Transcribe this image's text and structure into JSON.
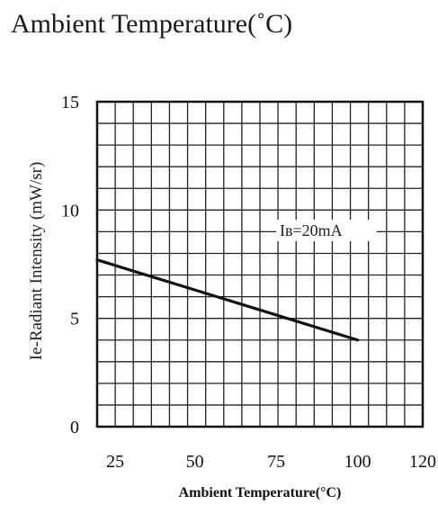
{
  "header": {
    "title": "Ambient Temperature(˚C)"
  },
  "chart_data": {
    "type": "line",
    "xlabel": "Ambient Temperature(°C)",
    "ylabel": "Ie-Radiant Intensity (mW/sr)",
    "xlim": [
      20,
      120
    ],
    "ylim": [
      0,
      15
    ],
    "xticks": [
      "25",
      "50",
      "75",
      "100",
      "120"
    ],
    "xtick_values": [
      25,
      50,
      75,
      100,
      120
    ],
    "yticks": [
      "0",
      "5",
      "10",
      "15"
    ],
    "ytick_values": [
      0,
      5,
      10,
      15
    ],
    "grid": true,
    "annotation": "Iʙ=20mA",
    "series": [
      {
        "x": [
          20,
          100
        ],
        "y": [
          7.7,
          4.0
        ]
      }
    ]
  }
}
